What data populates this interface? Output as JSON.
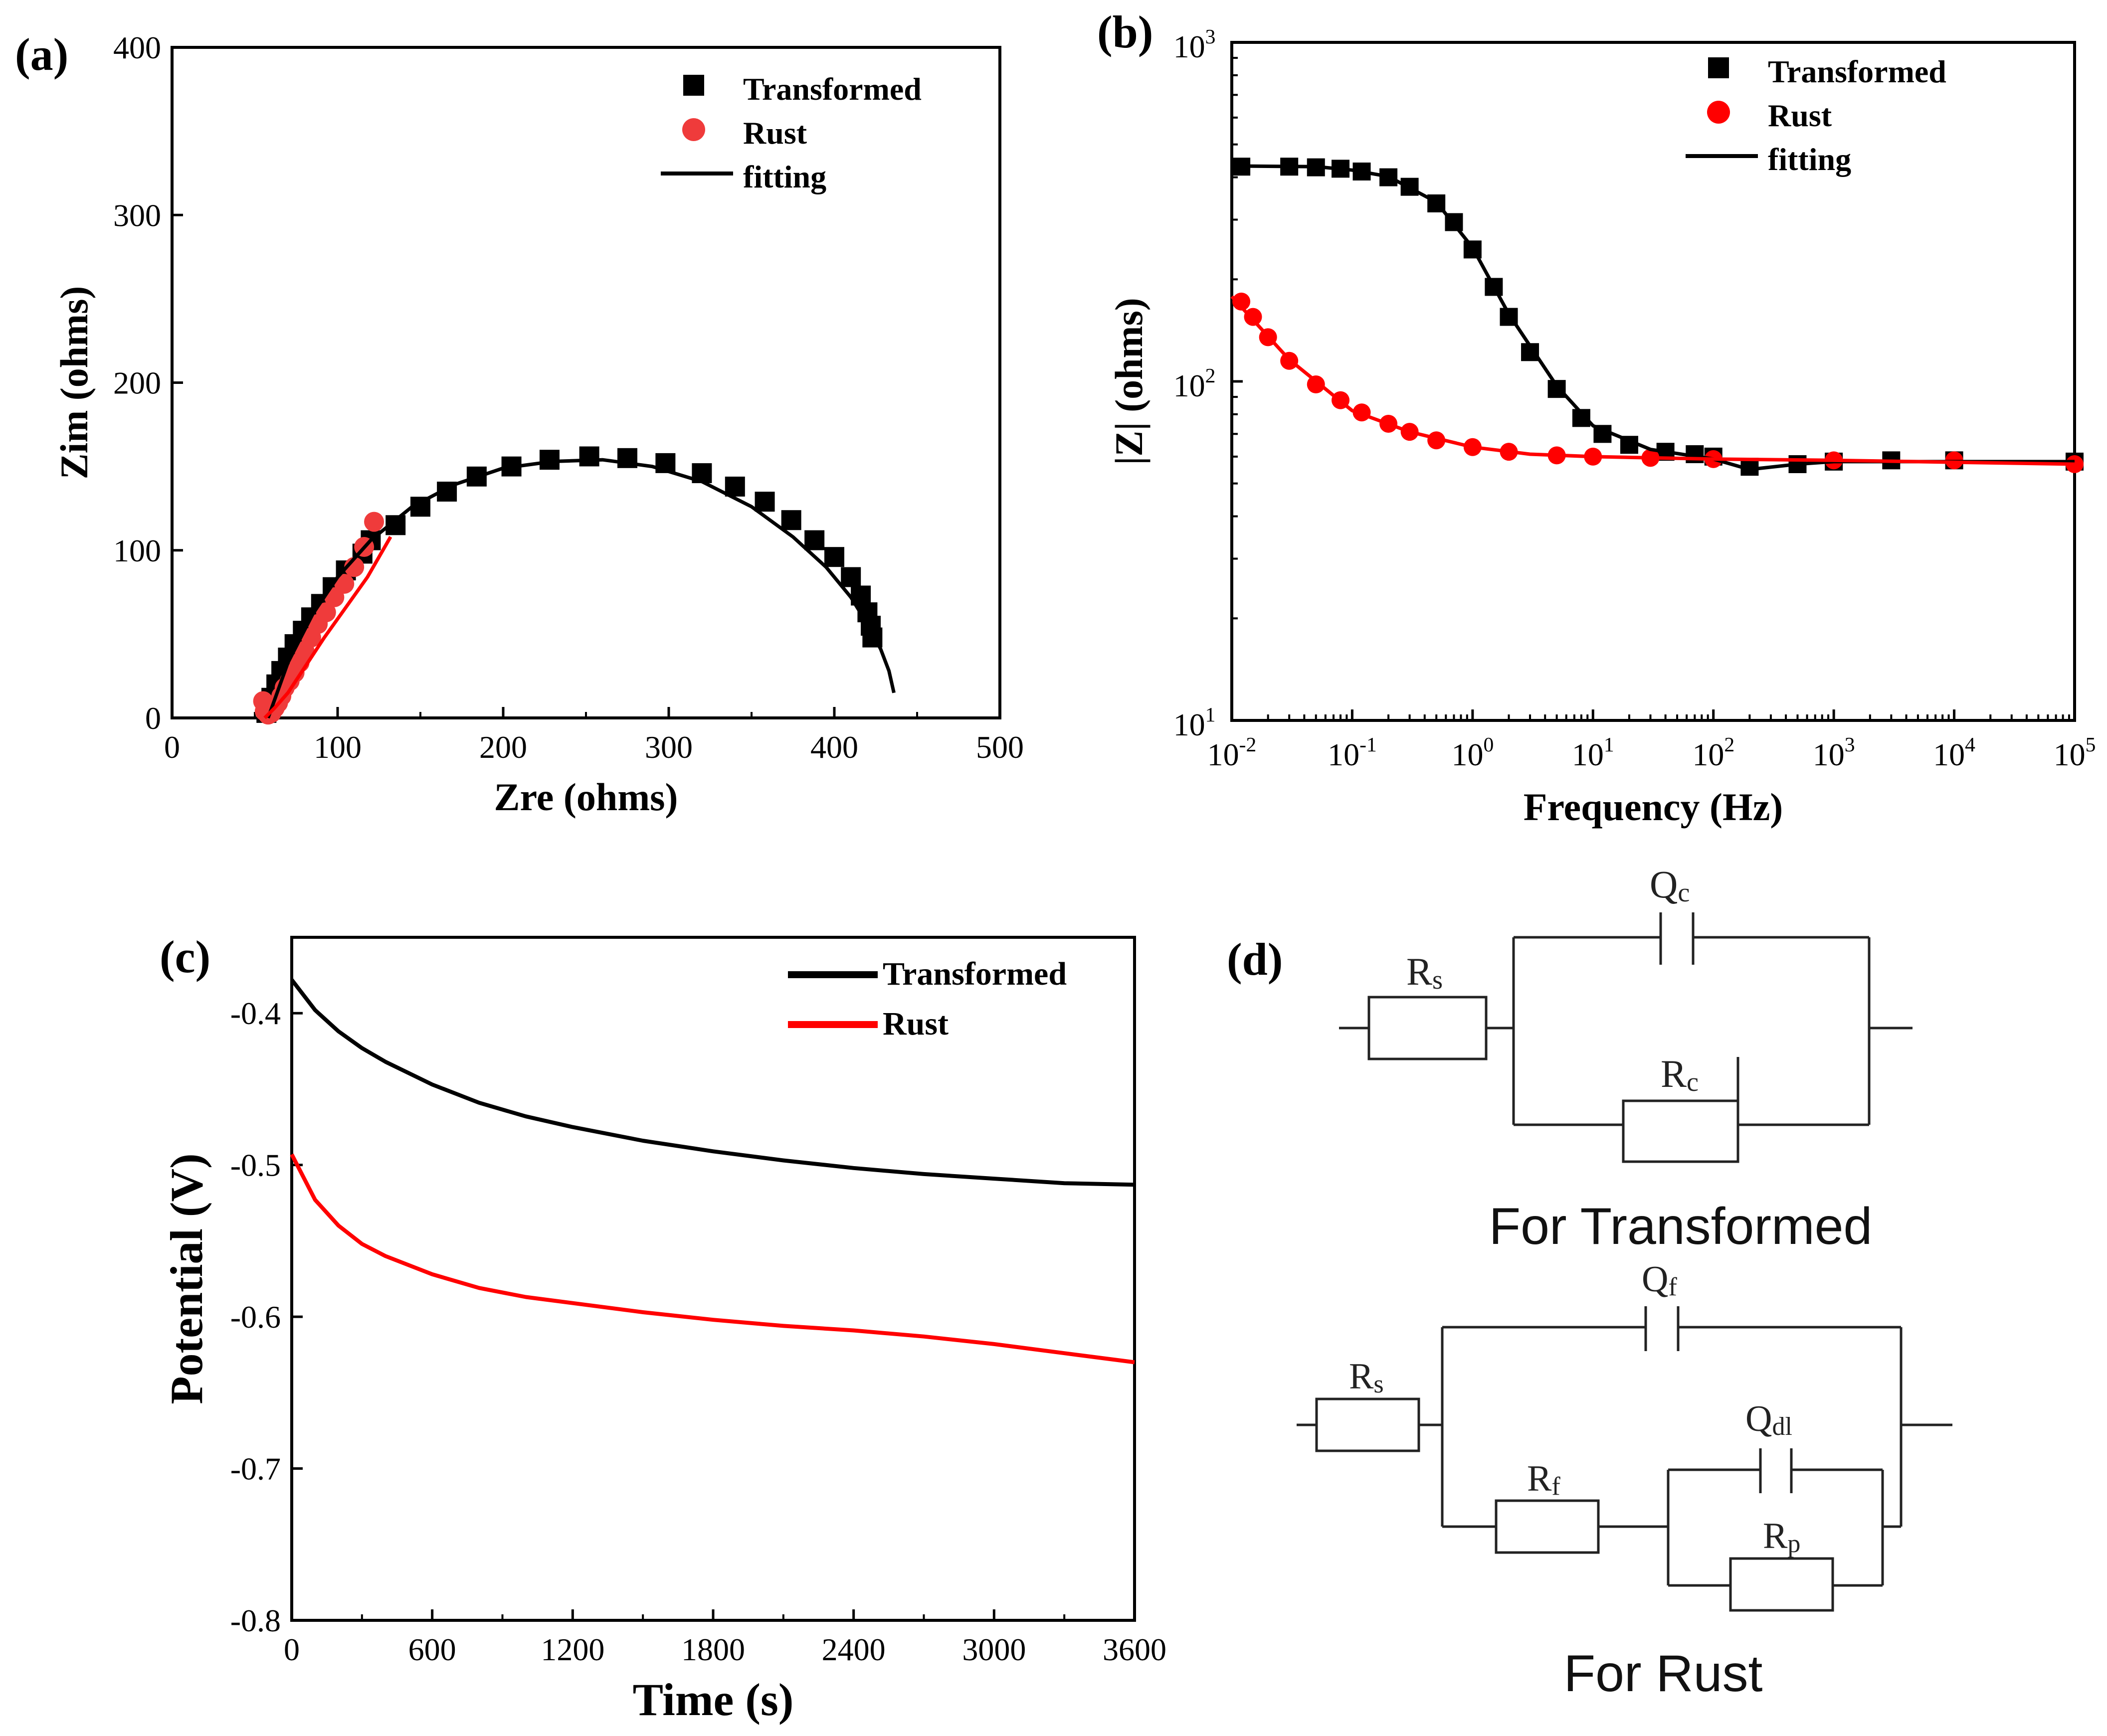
{
  "colors": {
    "transformed": "#000000",
    "rust": "#ff0000",
    "rust_marker": "#ef3b3b"
  },
  "chart_data": [
    {
      "panel": "(a)",
      "type": "scatter",
      "xlabel": "Zre (ohms)",
      "ylabel": "Zim (ohms)",
      "xlim": [
        0,
        500
      ],
      "ylim": [
        0,
        400
      ],
      "xticks": [
        0,
        100,
        200,
        300,
        400,
        500
      ],
      "yticks": [
        0,
        100,
        200,
        300,
        400
      ],
      "legend": {
        "position": "top-right",
        "entries": [
          "Transformed",
          "Rust",
          "fitting"
        ]
      },
      "series": [
        {
          "name": "Transformed",
          "kind": "marker-square",
          "x": [
            57,
            60,
            63,
            66,
            70,
            74,
            79,
            84,
            90,
            97,
            105,
            115,
            120,
            135,
            150,
            166,
            184,
            205,
            228,
            252,
            275,
            298,
            320,
            340,
            358,
            374,
            388,
            400,
            410,
            416,
            420,
            422,
            423
          ],
          "y": [
            3,
            12,
            20,
            28,
            36,
            44,
            52,
            60,
            68,
            78,
            88,
            98,
            106,
            115,
            126,
            135,
            144,
            150,
            154,
            156,
            155,
            152,
            146,
            138,
            129,
            118,
            106,
            96,
            84,
            73,
            63,
            55,
            48
          ]
        },
        {
          "name": "Rust",
          "kind": "marker-circle",
          "x": [
            55,
            56,
            58,
            60,
            62,
            64,
            66,
            68,
            71,
            74,
            77,
            80,
            84,
            88,
            93,
            98,
            104,
            110,
            116,
            122
          ],
          "y": [
            10,
            4,
            2,
            3,
            6,
            9,
            13,
            18,
            22,
            27,
            33,
            40,
            48,
            56,
            63,
            72,
            80,
            90,
            102,
            117
          ]
        },
        {
          "name": "fitting (Transformed)",
          "kind": "line",
          "x": [
            58,
            70,
            85,
            100,
            120,
            145,
            170,
            200,
            230,
            260,
            290,
            320,
            350,
            375,
            395,
            410,
            420,
            428,
            433,
            436
          ],
          "y": [
            0,
            33,
            62,
            84,
            106,
            126,
            139,
            149,
            153,
            154,
            150,
            141,
            126,
            108,
            90,
            72,
            56,
            41,
            28,
            15
          ]
        },
        {
          "name": "fitting (Rust)",
          "kind": "line",
          "x": [
            56,
            62,
            70,
            80,
            92,
            105,
            118,
            132
          ],
          "y": [
            0,
            6,
            15,
            30,
            48,
            66,
            84,
            108
          ]
        }
      ]
    },
    {
      "panel": "(b)",
      "type": "scatter",
      "xlabel": "Frequency (Hz)",
      "ylabel": "|Z| (ohms)",
      "xscale": "log",
      "yscale": "log",
      "xlim": [
        0.01,
        100000
      ],
      "ylim": [
        10,
        1000
      ],
      "xtick_exponents": [
        -2,
        -1,
        0,
        1,
        2,
        3,
        4,
        5
      ],
      "ytick_exponents": [
        1,
        2,
        3
      ],
      "tick_base": "10",
      "legend": {
        "position": "top-right",
        "entries": [
          "Transformed",
          "Rust",
          "fitting"
        ]
      },
      "series": [
        {
          "name": "Transformed",
          "kind": "marker-square",
          "x": [
            0.012,
            0.03,
            0.05,
            0.08,
            0.12,
            0.2,
            0.3,
            0.5,
            0.7,
            1,
            1.5,
            2,
            3,
            5,
            8,
            12,
            20,
            40,
            70,
            100,
            200,
            500,
            1000,
            3000,
            10000,
            100000
          ],
          "y": [
            430,
            430,
            428,
            424,
            416,
            400,
            375,
            335,
            295,
            245,
            190,
            155,
            122,
            95,
            78,
            70,
            65,
            62,
            61,
            60,
            56,
            57,
            58,
            58.5,
            58.5,
            58
          ]
        },
        {
          "name": "Rust",
          "kind": "marker-circle",
          "x": [
            0.012,
            0.015,
            0.02,
            0.03,
            0.05,
            0.08,
            0.12,
            0.2,
            0.3,
            0.5,
            1,
            2,
            5,
            10,
            30,
            100,
            1000,
            10000,
            100000
          ],
          "y": [
            172,
            155,
            135,
            115,
            98,
            88,
            81,
            75,
            71,
            67,
            64,
            62,
            60.5,
            60,
            59.5,
            59,
            58.5,
            58.5,
            57
          ]
        },
        {
          "name": "fitting (Transformed)",
          "kind": "line",
          "x": [
            0.01,
            0.05,
            0.1,
            0.2,
            0.5,
            1,
            2,
            5,
            10,
            30,
            100,
            200,
            500,
            1000,
            100000
          ],
          "y": [
            432,
            430,
            420,
            402,
            338,
            248,
            158,
            97,
            74,
            63,
            59,
            55,
            57,
            58,
            58
          ]
        },
        {
          "name": "fitting (Rust)",
          "kind": "line",
          "x": [
            0.01,
            0.03,
            0.1,
            0.3,
            1,
            3,
            10,
            100,
            1000,
            100000
          ],
          "y": [
            178,
            116,
            82,
            71,
            64,
            61,
            60,
            59,
            58.5,
            57
          ]
        }
      ]
    },
    {
      "panel": "(c)",
      "type": "line",
      "xlabel": "Time (s)",
      "ylabel": "Potential (V)",
      "xlim": [
        0,
        3600
      ],
      "ylim": [
        -0.8,
        -0.35
      ],
      "xticks": [
        0,
        600,
        1200,
        1800,
        2400,
        3000,
        3600
      ],
      "yticks": [
        -0.4,
        -0.5,
        -0.6,
        -0.7,
        -0.8
      ],
      "legend": {
        "position": "top-right",
        "entries": [
          "Transformed",
          "Rust"
        ]
      },
      "series": [
        {
          "name": "Transformed",
          "x": [
            0,
            100,
            200,
            300,
            400,
            600,
            800,
            1000,
            1200,
            1500,
            1800,
            2100,
            2400,
            2700,
            3000,
            3300,
            3600
          ],
          "y": [
            -0.378,
            -0.398,
            -0.412,
            -0.423,
            -0.432,
            -0.447,
            -0.459,
            -0.468,
            -0.475,
            -0.484,
            -0.491,
            -0.497,
            -0.502,
            -0.506,
            -0.509,
            -0.512,
            -0.513
          ]
        },
        {
          "name": "Rust",
          "x": [
            0,
            100,
            200,
            300,
            400,
            600,
            800,
            1000,
            1200,
            1500,
            1800,
            2100,
            2400,
            2700,
            3000,
            3300,
            3600
          ],
          "y": [
            -0.493,
            -0.523,
            -0.54,
            -0.552,
            -0.56,
            -0.572,
            -0.581,
            -0.587,
            -0.591,
            -0.597,
            -0.602,
            -0.606,
            -0.609,
            -0.613,
            -0.618,
            -0.624,
            -0.63
          ]
        }
      ]
    }
  ],
  "circuits": {
    "panel": "(d)",
    "transformed": {
      "caption": "For Transformed",
      "components": [
        {
          "main": "R",
          "sub": "s"
        },
        {
          "main": "Q",
          "sub": "c"
        },
        {
          "main": "R",
          "sub": "c"
        }
      ]
    },
    "rust": {
      "caption": "For Rust",
      "components": [
        {
          "main": "R",
          "sub": "s"
        },
        {
          "main": "Q",
          "sub": "f"
        },
        {
          "main": "R",
          "sub": "f"
        },
        {
          "main": "Q",
          "sub": "dl"
        },
        {
          "main": "R",
          "sub": "p"
        }
      ]
    }
  }
}
